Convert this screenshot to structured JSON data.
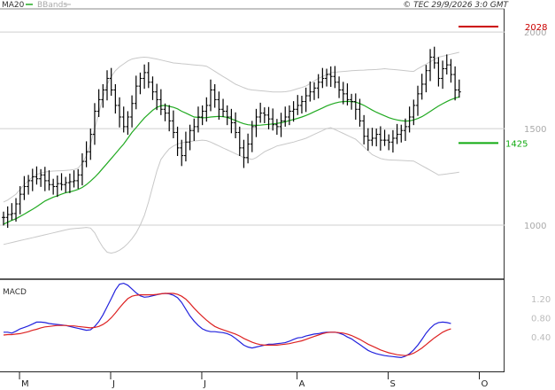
{
  "header": {
    "legend_ma": "MA20",
    "legend_bb": "BBands",
    "copyright": "© TEC 29/9/2026 3:0 GMT"
  },
  "colors": {
    "ma20": "#22aa22",
    "bbands": "#c8c8c8",
    "resistance": "#cc0000",
    "support": "#11aa11",
    "macd": "#2222dd",
    "signal": "#dd2222",
    "price": "#000000"
  },
  "chart_data": [
    {
      "type": "ohlc",
      "y_range": [
        720,
        2120
      ],
      "y_ticks": [
        {
          "value": 1000,
          "label": "1000"
        },
        {
          "value": 1500,
          "label": "1500"
        },
        {
          "value": 2000,
          "label": "2000"
        }
      ],
      "x_ticks": [
        {
          "index": 3,
          "label": "M"
        },
        {
          "index": 25,
          "label": "J"
        },
        {
          "index": 47,
          "label": "J"
        },
        {
          "index": 70,
          "label": "A"
        },
        {
          "index": 92,
          "label": "S"
        },
        {
          "index": 114,
          "label": "O"
        }
      ],
      "levels": [
        {
          "name": "resistance",
          "value": 2028,
          "label": "2028"
        },
        {
          "name": "support",
          "value": 1425,
          "label": "1425"
        }
      ],
      "close": [
        1040,
        1055,
        1060,
        1110,
        1160,
        1200,
        1230,
        1250,
        1240,
        1260,
        1230,
        1210,
        1200,
        1215,
        1210,
        1220,
        1225,
        1230,
        1260,
        1330,
        1380,
        1470,
        1590,
        1650,
        1700,
        1760,
        1700,
        1620,
        1560,
        1510,
        1560,
        1630,
        1720,
        1760,
        1790,
        1740,
        1690,
        1650,
        1600,
        1580,
        1540,
        1480,
        1400,
        1360,
        1430,
        1490,
        1510,
        1560,
        1590,
        1620,
        1700,
        1650,
        1600,
        1590,
        1560,
        1530,
        1480,
        1400,
        1350,
        1420,
        1510,
        1560,
        1580,
        1570,
        1550,
        1520,
        1510,
        1540,
        1560,
        1590,
        1600,
        1620,
        1640,
        1670,
        1690,
        1710,
        1740,
        1760,
        1780,
        1770,
        1740,
        1700,
        1680,
        1650,
        1640,
        1600,
        1540,
        1460,
        1440,
        1450,
        1470,
        1440,
        1440,
        1430,
        1450,
        1470,
        1490,
        1510,
        1560,
        1620,
        1680,
        1730,
        1800,
        1870,
        1840,
        1760,
        1810,
        1830,
        1780,
        1700,
        1690
      ],
      "ma20": [
        1005,
        1015,
        1025,
        1033,
        1045,
        1057,
        1070,
        1082,
        1095,
        1110,
        1125,
        1135,
        1145,
        1152,
        1160,
        1168,
        1172,
        1178,
        1185,
        1195,
        1210,
        1228,
        1248,
        1270,
        1295,
        1320,
        1345,
        1370,
        1395,
        1420,
        1450,
        1480,
        1505,
        1530,
        1555,
        1575,
        1595,
        1610,
        1618,
        1620,
        1615,
        1610,
        1602,
        1590,
        1580,
        1570,
        1560,
        1558,
        1556,
        1557,
        1560,
        1562,
        1563,
        1562,
        1558,
        1550,
        1542,
        1533,
        1525,
        1520,
        1518,
        1517,
        1518,
        1520,
        1522,
        1524,
        1527,
        1530,
        1535,
        1541,
        1547,
        1553,
        1560,
        1568,
        1577,
        1587,
        1597,
        1607,
        1617,
        1625,
        1632,
        1637,
        1640,
        1641,
        1640,
        1637,
        1630,
        1620,
        1608,
        1596,
        1585,
        1575,
        1566,
        1557,
        1550,
        1545,
        1541,
        1539,
        1540,
        1545,
        1552,
        1562,
        1575,
        1589,
        1603,
        1617,
        1629,
        1640,
        1650,
        1658,
        1664
      ],
      "bb_upper": [
        1120,
        1130,
        1145,
        1160,
        1185,
        1210,
        1230,
        1250,
        1262,
        1270,
        1275,
        1278,
        1280,
        1281,
        1282,
        1283,
        1285,
        1288,
        1295,
        1320,
        1360,
        1420,
        1500,
        1580,
        1660,
        1730,
        1770,
        1800,
        1820,
        1835,
        1850,
        1860,
        1865,
        1868,
        1870,
        1868,
        1864,
        1860,
        1855,
        1850,
        1845,
        1840,
        1838,
        1836,
        1834,
        1832,
        1830,
        1828,
        1826,
        1823,
        1810,
        1797,
        1783,
        1770,
        1757,
        1743,
        1730,
        1721,
        1712,
        1704,
        1700,
        1698,
        1696,
        1694,
        1692,
        1690,
        1690,
        1690,
        1691,
        1694,
        1700,
        1707,
        1713,
        1720,
        1733,
        1747,
        1760,
        1770,
        1780,
        1790,
        1792,
        1794,
        1796,
        1798,
        1800,
        1801,
        1802,
        1803,
        1804,
        1805,
        1806,
        1808,
        1810,
        1808,
        1806,
        1804,
        1802,
        1800,
        1798,
        1796,
        1810,
        1822,
        1834,
        1846,
        1858,
        1870,
        1875,
        1880,
        1885,
        1890,
        1895
      ],
      "bb_lower": [
        900,
        905,
        910,
        915,
        920,
        925,
        930,
        935,
        940,
        945,
        950,
        955,
        960,
        965,
        970,
        975,
        980,
        982,
        984,
        986,
        988,
        985,
        960,
        920,
        885,
        860,
        855,
        860,
        870,
        885,
        905,
        930,
        960,
        1000,
        1050,
        1120,
        1200,
        1280,
        1340,
        1370,
        1395,
        1410,
        1420,
        1426,
        1430,
        1433,
        1436,
        1438,
        1440,
        1438,
        1430,
        1420,
        1410,
        1400,
        1390,
        1380,
        1370,
        1360,
        1350,
        1345,
        1340,
        1350,
        1365,
        1380,
        1390,
        1400,
        1410,
        1415,
        1420,
        1425,
        1430,
        1437,
        1443,
        1450,
        1460,
        1470,
        1480,
        1490,
        1500,
        1505,
        1495,
        1485,
        1475,
        1465,
        1455,
        1445,
        1425,
        1405,
        1385,
        1365,
        1355,
        1345,
        1340,
        1338,
        1337,
        1336,
        1335,
        1334,
        1333,
        1332,
        1320,
        1308,
        1296,
        1284,
        1272,
        1260,
        1262,
        1265,
        1268,
        1271,
        1274
      ]
    },
    {
      "type": "line",
      "title": "MACD",
      "y_range": [
        -0.3,
        1.55
      ],
      "y_ticks": [
        {
          "value": 0.4,
          "label": "0.40"
        },
        {
          "value": 0.8,
          "label": "0.80"
        },
        {
          "value": 1.2,
          "label": "1.20"
        }
      ],
      "series": [
        {
          "name": "macd",
          "values": [
            0.5,
            0.5,
            0.48,
            0.52,
            0.57,
            0.6,
            0.63,
            0.67,
            0.71,
            0.71,
            0.7,
            0.68,
            0.67,
            0.66,
            0.65,
            0.64,
            0.62,
            0.6,
            0.58,
            0.56,
            0.54,
            0.55,
            0.62,
            0.72,
            0.86,
            1.03,
            1.2,
            1.38,
            1.5,
            1.52,
            1.48,
            1.4,
            1.32,
            1.26,
            1.23,
            1.24,
            1.26,
            1.28,
            1.3,
            1.31,
            1.3,
            1.27,
            1.22,
            1.12,
            0.98,
            0.84,
            0.73,
            0.64,
            0.57,
            0.53,
            0.51,
            0.51,
            0.5,
            0.49,
            0.47,
            0.43,
            0.37,
            0.3,
            0.23,
            0.19,
            0.17,
            0.19,
            0.21,
            0.23,
            0.25,
            0.25,
            0.26,
            0.27,
            0.28,
            0.31,
            0.35,
            0.38,
            0.39,
            0.42,
            0.44,
            0.46,
            0.47,
            0.49,
            0.5,
            0.5,
            0.5,
            0.48,
            0.45,
            0.4,
            0.36,
            0.3,
            0.24,
            0.18,
            0.12,
            0.08,
            0.05,
            0.03,
            0.01,
            0.0,
            -0.01,
            -0.02,
            -0.03,
            0.0,
            0.05,
            0.13,
            0.23,
            0.35,
            0.48,
            0.58,
            0.66,
            0.7,
            0.71,
            0.7,
            0.68
          ]
        },
        {
          "name": "signal",
          "values": [
            0.44,
            0.45,
            0.45,
            0.46,
            0.47,
            0.49,
            0.51,
            0.54,
            0.56,
            0.59,
            0.61,
            0.62,
            0.63,
            0.64,
            0.64,
            0.64,
            0.63,
            0.63,
            0.62,
            0.61,
            0.6,
            0.59,
            0.6,
            0.62,
            0.66,
            0.72,
            0.8,
            0.9,
            1.01,
            1.11,
            1.2,
            1.25,
            1.27,
            1.28,
            1.28,
            1.28,
            1.28,
            1.29,
            1.3,
            1.31,
            1.31,
            1.31,
            1.29,
            1.25,
            1.19,
            1.1,
            1.0,
            0.91,
            0.83,
            0.75,
            0.68,
            0.62,
            0.58,
            0.55,
            0.52,
            0.49,
            0.46,
            0.42,
            0.37,
            0.33,
            0.29,
            0.26,
            0.24,
            0.23,
            0.23,
            0.23,
            0.23,
            0.24,
            0.25,
            0.26,
            0.28,
            0.3,
            0.32,
            0.35,
            0.38,
            0.41,
            0.44,
            0.47,
            0.49,
            0.5,
            0.5,
            0.49,
            0.48,
            0.46,
            0.43,
            0.39,
            0.35,
            0.3,
            0.25,
            0.21,
            0.17,
            0.13,
            0.1,
            0.07,
            0.05,
            0.03,
            0.02,
            0.01,
            0.03,
            0.06,
            0.11,
            0.17,
            0.24,
            0.31,
            0.38,
            0.44,
            0.5,
            0.54,
            0.57
          ]
        }
      ]
    }
  ]
}
